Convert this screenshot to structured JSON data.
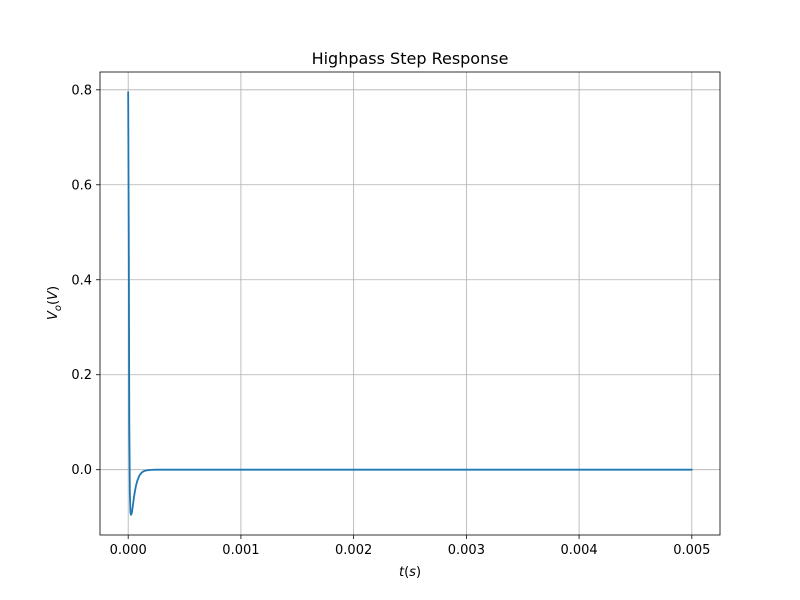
{
  "chart_data": {
    "type": "line",
    "title": "Highpass Step Response",
    "xlabel": {
      "base": "t",
      "paren": "s"
    },
    "ylabel": {
      "base": "V",
      "sub": "o",
      "paren": "V"
    },
    "xlim": [
      -0.00025,
      0.00525
    ],
    "ylim": [
      -0.1375,
      0.8375
    ],
    "xticks": [
      0.0,
      0.001,
      0.002,
      0.003,
      0.004,
      0.005
    ],
    "xtick_labels": [
      "0.000",
      "0.001",
      "0.002",
      "0.003",
      "0.004",
      "0.005"
    ],
    "yticks": [
      0.0,
      0.2,
      0.4,
      0.6,
      0.8
    ],
    "ytick_labels": [
      "0.0",
      "0.2",
      "0.4",
      "0.6",
      "0.8"
    ],
    "grid": true,
    "series": [
      {
        "color": "#1f77b4",
        "x": [
          0,
          5e-06,
          1e-05,
          1.5e-05,
          2e-05,
          2.5e-05,
          3e-05,
          3.5e-05,
          4e-05,
          5e-05,
          6e-05,
          7e-05,
          8e-05,
          0.0001,
          0.00012,
          0.00014,
          0.00016,
          0.0002,
          0.00025,
          0.0003,
          0.0005,
          0.001,
          0.002,
          0.003,
          0.004,
          0.005
        ],
        "y": [
          0.795,
          0.5,
          0.1,
          -0.05,
          -0.09,
          -0.095,
          -0.093,
          -0.087,
          -0.078,
          -0.06,
          -0.045,
          -0.033,
          -0.024,
          -0.012,
          -0.006,
          -0.003,
          -0.0015,
          -0.0004,
          0.0,
          0.0,
          0.0,
          0.0,
          0.0,
          0.0,
          0.0,
          0.0
        ]
      }
    ]
  }
}
